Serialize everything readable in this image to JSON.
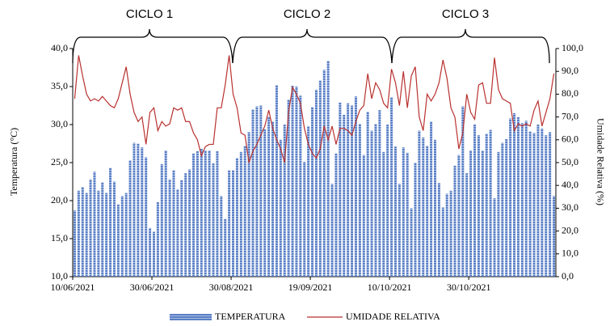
{
  "chart_data": {
    "type": "bar_line",
    "annotations": [
      "CICLO 1",
      "CICLO 2",
      "CICLO 3"
    ],
    "y_label": "Temperatura (°C)",
    "y2_label": "Umidade Relativa (%)",
    "categories": [
      "10/06/2021",
      null,
      null,
      null,
      null,
      null,
      null,
      null,
      null,
      null,
      null,
      null,
      null,
      null,
      null,
      null,
      null,
      null,
      null,
      null,
      "30/06/2021",
      null,
      null,
      null,
      null,
      null,
      null,
      null,
      null,
      null,
      null,
      null,
      null,
      null,
      null,
      null,
      null,
      null,
      null,
      null,
      "30/08/2021",
      null,
      null,
      null,
      null,
      null,
      null,
      null,
      null,
      null,
      null,
      null,
      null,
      null,
      null,
      null,
      null,
      null,
      null,
      null,
      "19/09/2021",
      null,
      null,
      null,
      null,
      null,
      null,
      null,
      null,
      null,
      null,
      null,
      null,
      null,
      null,
      null,
      null,
      null,
      null,
      null,
      "10/10/2021",
      null,
      null,
      null,
      null,
      null,
      null,
      null,
      null,
      null,
      null,
      null,
      null,
      null,
      null,
      null,
      null,
      null,
      null,
      null,
      "30/10/2021",
      null,
      null,
      null,
      null,
      null,
      null,
      null,
      null,
      null,
      null,
      null,
      null,
      null,
      null,
      null,
      null,
      null,
      null,
      null,
      null,
      null
    ],
    "series": [
      {
        "name": "TEMPERATURA",
        "color": "#5b7fc4",
        "values": [
          18.7,
          21.3,
          21.8,
          21.0,
          22.8,
          23.8,
          21.3,
          22.4,
          21.0,
          24.3,
          22.5,
          19.5,
          20.6,
          21.0,
          25.3,
          27.6,
          27.5,
          27.0,
          25.7,
          16.4,
          15.9,
          19.8,
          24.8,
          26.6,
          22.8,
          24.0,
          21.5,
          22.7,
          23.6,
          24.1,
          26.2,
          26.5,
          26.8,
          26.6,
          26.6,
          24.9,
          26.5,
          20.6,
          17.6,
          24.0,
          24.0,
          25.6,
          26.4,
          27.2,
          29.0,
          32.0,
          32.4,
          32.5,
          29.4,
          31.0,
          30.4,
          35.2,
          28.0,
          30.0,
          33.3,
          35.1,
          35.0,
          33.8,
          25.1,
          29.8,
          32.3,
          34.6,
          35.8,
          37.2,
          38.4,
          22.2,
          26.2,
          32.9,
          31.3,
          32.8,
          32.5,
          33.7,
          30.1,
          26.0,
          31.7,
          29.2,
          30.1,
          31.9,
          26.4,
          30.0,
          33.6,
          27.1,
          22.2,
          27.0,
          26.3,
          19.0,
          25.0,
          29.2,
          28.3,
          27.2,
          30.4,
          28.0,
          22.3,
          19.1,
          20.9,
          21.3,
          24.6,
          26.0,
          32.4,
          23.6,
          26.6,
          30.0,
          28.6,
          26.6,
          28.8,
          29.3,
          20.3,
          26.4,
          27.6,
          28.1,
          30.8,
          31.5,
          31.0,
          30.2,
          30.5,
          29.1,
          28.9,
          30.0,
          29.5,
          28.6,
          29.0,
          20.6
        ]
      },
      {
        "name": "UMIDADE RELATIVA",
        "color": "#b8312f",
        "axis": "y2",
        "values": [
          78,
          97,
          88,
          80,
          77,
          78,
          77,
          79,
          77,
          75,
          74,
          78,
          85,
          92,
          80,
          72,
          68,
          70,
          58,
          72,
          74,
          64,
          68,
          66,
          67,
          74,
          73,
          74,
          68,
          68,
          63,
          60,
          53,
          57,
          58,
          58,
          74,
          74,
          84,
          97,
          80,
          74,
          63,
          62,
          50,
          55,
          58,
          62,
          66,
          73,
          65,
          60,
          56,
          50,
          72,
          83,
          80,
          76,
          65,
          58,
          54,
          52,
          56,
          66,
          60,
          66,
          58,
          65,
          65,
          64,
          62,
          68,
          73,
          75,
          89,
          78,
          85,
          82,
          76,
          74,
          91,
          85,
          75,
          90,
          74,
          88,
          92,
          70,
          64,
          80,
          77,
          80,
          85,
          95,
          87,
          74,
          70,
          56,
          63,
          80,
          72,
          69,
          84,
          85,
          76,
          76,
          96,
          82,
          78,
          77,
          76,
          64,
          67,
          66,
          67,
          66,
          73,
          77,
          66,
          72,
          78,
          89
        ]
      }
    ],
    "ylim": [
      10,
      40
    ],
    "yticks": [
      {
        "value": 10,
        "label": "10,0"
      },
      {
        "value": 15,
        "label": "15,0"
      },
      {
        "value": 20,
        "label": "20,0"
      },
      {
        "value": 25,
        "label": "25,0"
      },
      {
        "value": 30,
        "label": "30,0"
      },
      {
        "value": 35,
        "label": "35,0"
      },
      {
        "value": 40,
        "label": "40,0"
      }
    ],
    "y2lim": [
      0,
      100
    ],
    "y2ticks": [
      {
        "value": 0,
        "label": "0,0"
      },
      {
        "value": 10,
        "label": "10,0"
      },
      {
        "value": 20,
        "label": "20,0"
      },
      {
        "value": 30,
        "label": "30,0"
      },
      {
        "value": 40,
        "label": "40,0"
      },
      {
        "value": 50,
        "label": "50,0"
      },
      {
        "value": 60,
        "label": "60,0"
      },
      {
        "value": 70,
        "label": "70,0"
      },
      {
        "value": 80,
        "label": "80,0"
      },
      {
        "value": 90,
        "label": "90,0"
      },
      {
        "value": 100,
        "label": "100,0"
      }
    ]
  }
}
